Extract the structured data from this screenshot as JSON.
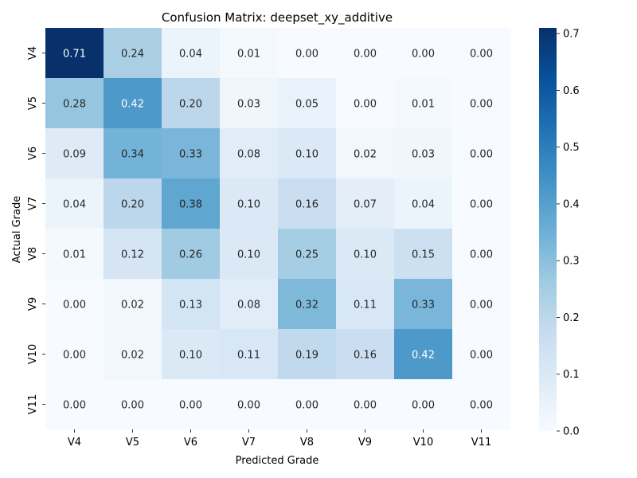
{
  "chart_data": {
    "type": "heatmap",
    "title": "Confusion Matrix: deepset_xy_additive",
    "xlabel": "Predicted Grade",
    "ylabel": "Actual Grade",
    "x_categories": [
      "V4",
      "V5",
      "V6",
      "V7",
      "V8",
      "V9",
      "V10",
      "V11"
    ],
    "y_categories": [
      "V4",
      "V5",
      "V6",
      "V7",
      "V8",
      "V9",
      "V10",
      "V11"
    ],
    "values": [
      [
        0.71,
        0.24,
        0.04,
        0.01,
        0.0,
        0.0,
        0.0,
        0.0
      ],
      [
        0.28,
        0.42,
        0.2,
        0.03,
        0.05,
        0.0,
        0.01,
        0.0
      ],
      [
        0.09,
        0.34,
        0.33,
        0.08,
        0.1,
        0.02,
        0.03,
        0.0
      ],
      [
        0.04,
        0.2,
        0.38,
        0.1,
        0.16,
        0.07,
        0.04,
        0.0
      ],
      [
        0.01,
        0.12,
        0.26,
        0.1,
        0.25,
        0.1,
        0.15,
        0.0
      ],
      [
        0.0,
        0.02,
        0.13,
        0.08,
        0.32,
        0.11,
        0.33,
        0.0
      ],
      [
        0.0,
        0.02,
        0.1,
        0.11,
        0.19,
        0.16,
        0.42,
        0.0
      ],
      [
        0.0,
        0.0,
        0.0,
        0.0,
        0.0,
        0.0,
        0.0,
        0.0
      ]
    ],
    "value_format": "0.00",
    "colormap": "Blues",
    "vmin": 0.0,
    "vmax": 0.71,
    "colorbar_ticks": [
      "0.0",
      "0.1",
      "0.2",
      "0.3",
      "0.4",
      "0.5",
      "0.6",
      "0.7"
    ],
    "grid": false,
    "legend": "colorbar-right"
  }
}
